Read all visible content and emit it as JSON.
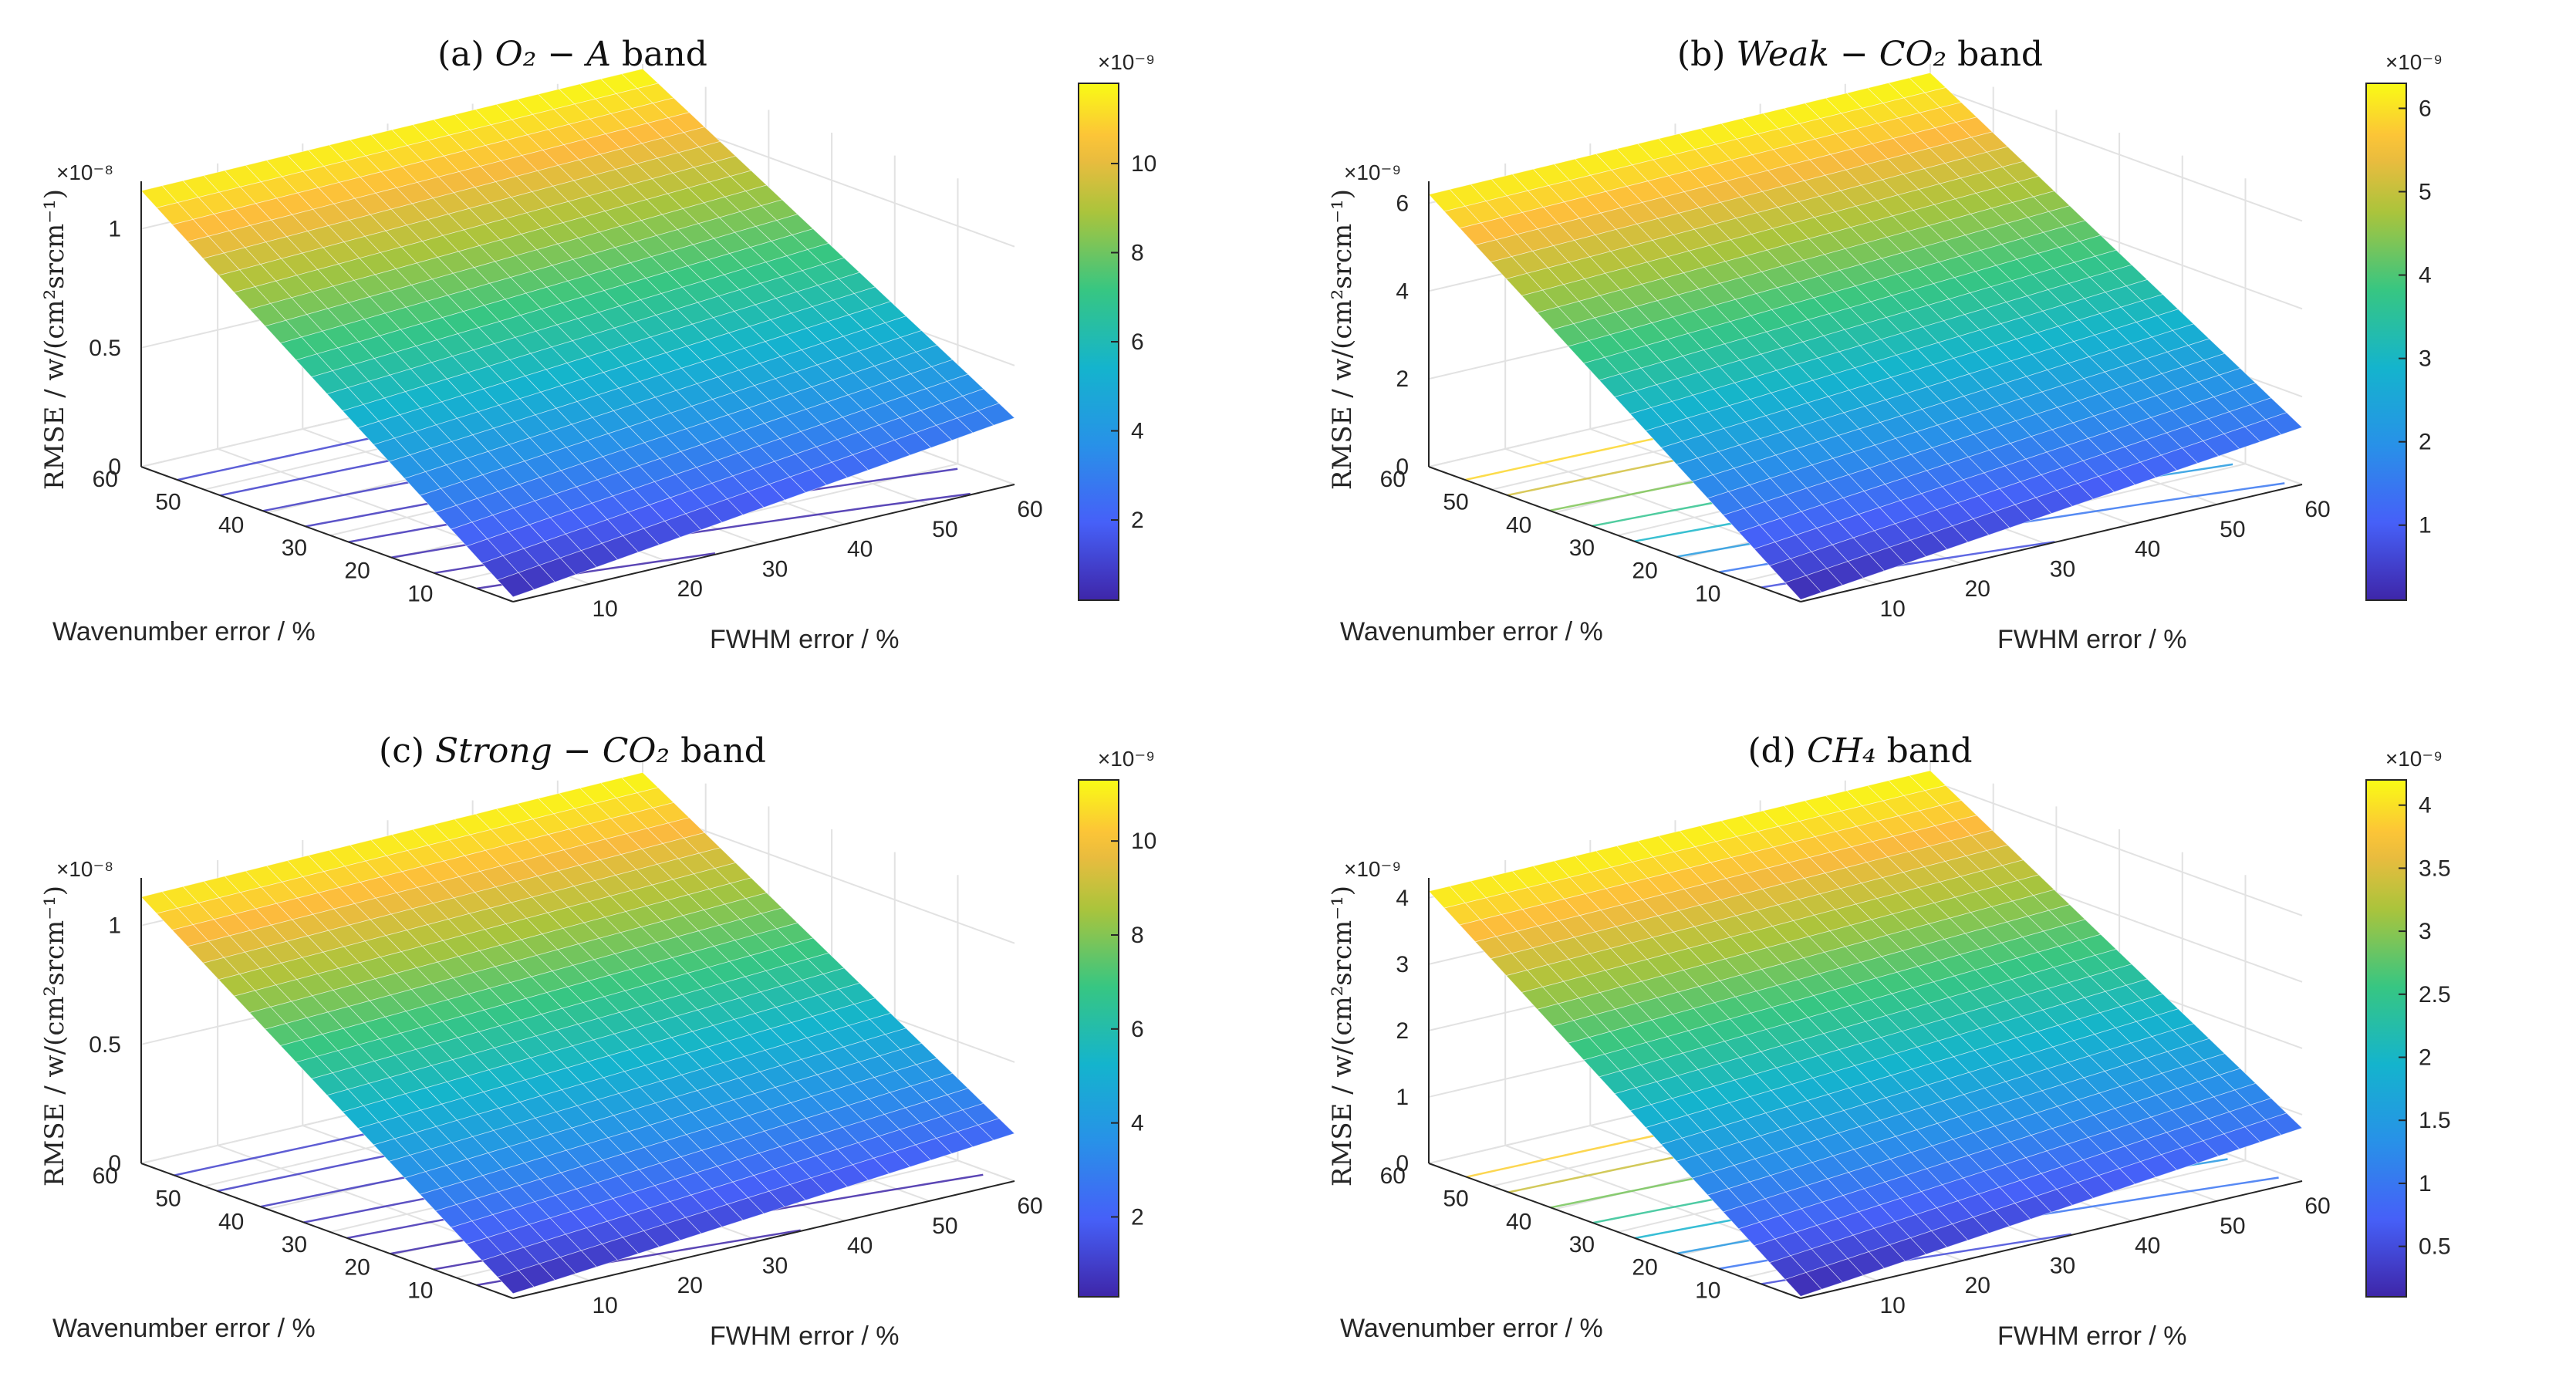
{
  "chart_data": [
    {
      "type": "surface3d",
      "title_prefix": "(a) ",
      "title_math": "O₂ − A",
      "title_suffix": " band",
      "xlabel": "Wavenumber error / %",
      "ylabel": "FWHM error / %",
      "zlabel": "RMSE / w/(cm²srcm⁻¹)",
      "z_exponent": "×10⁻⁸",
      "z_ticks": [
        "0",
        "0.5",
        "1"
      ],
      "z_tick_values": [
        0,
        0.5,
        1
      ],
      "zlim": [
        0,
        1.2
      ],
      "wavenumber_ticks": [
        "10",
        "20",
        "30",
        "40",
        "50",
        "60"
      ],
      "fwhm_ticks": [
        "10",
        "20",
        "30",
        "40",
        "50",
        "60"
      ],
      "axis_range": [
        1,
        60
      ],
      "z_corner_values": {
        "w1_f1": 0.02,
        "w60_f1": 1.16,
        "w1_f60": 0.28,
        "w60_f60": 1.18
      },
      "colorbar": {
        "exponent": "×10⁻⁹",
        "ticks": [
          "2",
          "4",
          "6",
          "8",
          "10"
        ],
        "tick_values": [
          2,
          4,
          6,
          8,
          10
        ],
        "range": [
          0.2,
          11.8
        ]
      }
    },
    {
      "type": "surface3d",
      "title_prefix": "(b) ",
      "title_math": "Weak − CO₂",
      "title_suffix": " band",
      "xlabel": "Wavenumber error / %",
      "ylabel": "FWHM error / %",
      "zlabel": "RMSE / w/(cm²srcm⁻¹)",
      "z_exponent": "×10⁻⁹",
      "z_ticks": [
        "0",
        "2",
        "4",
        "6"
      ],
      "z_tick_values": [
        0,
        2,
        4,
        6
      ],
      "zlim": [
        0,
        6.5
      ],
      "wavenumber_ticks": [
        "10",
        "20",
        "30",
        "40",
        "50",
        "60"
      ],
      "fwhm_ticks": [
        "10",
        "20",
        "30",
        "40",
        "50",
        "60"
      ],
      "axis_range": [
        1,
        60
      ],
      "z_corner_values": {
        "w1_f1": 0.05,
        "w60_f1": 6.2,
        "w1_f60": 1.3,
        "w60_f60": 6.3
      },
      "colorbar": {
        "exponent": "×10⁻⁹",
        "ticks": [
          "1",
          "2",
          "3",
          "4",
          "5",
          "6"
        ],
        "tick_values": [
          1,
          2,
          3,
          4,
          5,
          6
        ],
        "range": [
          0.1,
          6.3
        ]
      }
    },
    {
      "type": "surface3d",
      "title_prefix": "(c) ",
      "title_math": "Strong − CO₂",
      "title_suffix": " band",
      "xlabel": "Wavenumber error / %",
      "ylabel": "FWHM error / %",
      "zlabel": "RMSE / w/(cm²srcm⁻¹)",
      "z_exponent": "×10⁻⁸",
      "z_ticks": [
        "0",
        "0.5",
        "1"
      ],
      "z_tick_values": [
        0,
        0.5,
        1
      ],
      "zlim": [
        0,
        1.2
      ],
      "wavenumber_ticks": [
        "10",
        "20",
        "30",
        "40",
        "50",
        "60"
      ],
      "fwhm_ticks": [
        "10",
        "20",
        "30",
        "40",
        "50",
        "60"
      ],
      "axis_range": [
        1,
        60
      ],
      "z_corner_values": {
        "w1_f1": 0.02,
        "w60_f1": 1.12,
        "w1_f60": 0.2,
        "w60_f60": 1.15
      },
      "colorbar": {
        "exponent": "×10⁻⁹",
        "ticks": [
          "2",
          "4",
          "6",
          "8",
          "10"
        ],
        "tick_values": [
          2,
          4,
          6,
          8,
          10
        ],
        "range": [
          0.3,
          11.3
        ]
      }
    },
    {
      "type": "surface3d",
      "title_prefix": "(d) ",
      "title_math": "CH₄",
      "title_suffix": " band",
      "xlabel": "Wavenumber error / %",
      "ylabel": "FWHM error / %",
      "zlabel": "RMSE / w/(cm²srcm⁻¹)",
      "z_exponent": "×10⁻⁹",
      "z_ticks": [
        "0",
        "1",
        "2",
        "3",
        "4"
      ],
      "z_tick_values": [
        0,
        1,
        2,
        3,
        4
      ],
      "zlim": [
        0,
        4.3
      ],
      "wavenumber_ticks": [
        "10",
        "20",
        "30",
        "40",
        "50",
        "60"
      ],
      "fwhm_ticks": [
        "10",
        "20",
        "30",
        "40",
        "50",
        "60"
      ],
      "axis_range": [
        1,
        60
      ],
      "z_corner_values": {
        "w1_f1": 0.03,
        "w60_f1": 4.1,
        "w1_f60": 0.8,
        "w60_f60": 4.15
      },
      "colorbar": {
        "exponent": "×10⁻⁹",
        "ticks": [
          "0.5",
          "1",
          "1.5",
          "2",
          "2.5",
          "3",
          "3.5",
          "4"
        ],
        "tick_values": [
          0.5,
          1,
          1.5,
          2,
          2.5,
          3,
          3.5,
          4
        ],
        "range": [
          0.1,
          4.2
        ]
      }
    }
  ]
}
